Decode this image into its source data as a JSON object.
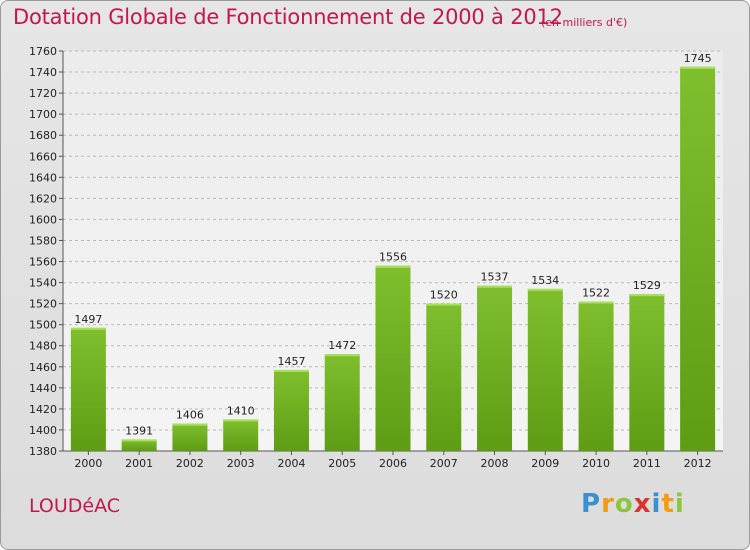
{
  "header": {
    "title": "Dotation Globale de Fonctionnement de 2000 à 2012",
    "subtitle": "(en milliers d'€)"
  },
  "footer": {
    "city": "LOUDéAC",
    "logo": {
      "letters": [
        "P",
        "r",
        "o",
        "x",
        "i",
        "t",
        "i"
      ],
      "colors": [
        "#3a8fd0",
        "#f39c12",
        "#8cc63f",
        "#e0312f",
        "#3a8fd0",
        "#f39c12",
        "#8cc63f"
      ]
    }
  },
  "chart_data": {
    "type": "bar",
    "title": "Dotation Globale de Fonctionnement de 2000 à 2012",
    "subtitle": "(en milliers d'€)",
    "categories": [
      "2000",
      "2001",
      "2002",
      "2003",
      "2004",
      "2005",
      "2006",
      "2007",
      "2008",
      "2009",
      "2010",
      "2011",
      "2012"
    ],
    "values": [
      1497,
      1391,
      1406,
      1410,
      1457,
      1472,
      1556,
      1520,
      1537,
      1534,
      1522,
      1529,
      1745
    ],
    "ylim": [
      1380,
      1760
    ],
    "yticks": [
      1380,
      1400,
      1420,
      1440,
      1460,
      1480,
      1500,
      1520,
      1540,
      1560,
      1580,
      1600,
      1620,
      1640,
      1660,
      1680,
      1700,
      1720,
      1740,
      1760
    ],
    "grid": true,
    "bar_color": "#7fbf2e",
    "bar_color_dark": "#5e9c14"
  }
}
